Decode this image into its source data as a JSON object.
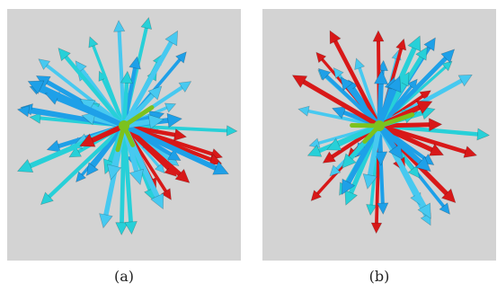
{
  "figure": {
    "panels": [
      {
        "id": "a",
        "label": "(a)",
        "seed": 7,
        "palette": {
          "primary": "#1ea0e8",
          "secondary": "#47c9f0",
          "tertiary": "#27d0d8",
          "outlier": "#d81818",
          "center": "#7cc21e"
        }
      },
      {
        "id": "b",
        "label": "(b)",
        "seed": 19,
        "palette": {
          "primary": "#1ea0e8",
          "secondary": "#47c9f0",
          "tertiary": "#27d0d8",
          "outlier": "#d81818",
          "center": "#7cc21e"
        }
      }
    ],
    "background_color": "#d3d3d3"
  }
}
